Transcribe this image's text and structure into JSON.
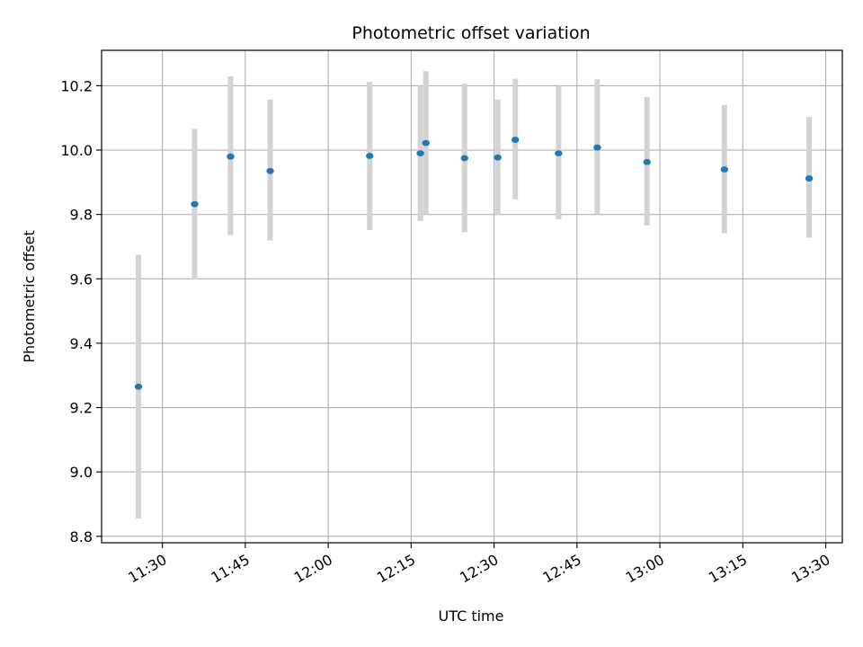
{
  "chart_data": {
    "type": "scatter",
    "title": "Photometric offset variation",
    "xlabel": "UTC time",
    "ylabel": "Photometric offset",
    "x_unit": "time (HH:MM UTC)",
    "xlim": [
      "11:19",
      "13:33"
    ],
    "ylim": [
      8.78,
      10.31
    ],
    "x_ticks": [
      "11:30",
      "11:45",
      "12:00",
      "12:15",
      "12:30",
      "12:45",
      "13:00",
      "13:15",
      "13:30"
    ],
    "y_ticks": [
      8.8,
      9.0,
      9.2,
      9.4,
      9.6,
      9.8,
      10.0,
      10.2
    ],
    "y_tick_labels": [
      "8.8",
      "9.0",
      "9.2",
      "9.4",
      "9.6",
      "9.8",
      "10.0",
      "10.2"
    ],
    "grid": true,
    "x_tick_rotation_deg": 30,
    "colors": {
      "points": "#1f77b4",
      "error_bars": "#d3d3d3",
      "grid": "#b0b0b0"
    },
    "points": [
      {
        "x": "11:25:40",
        "y": 9.265,
        "err_low": 8.855,
        "err_high": 9.675
      },
      {
        "x": "11:35:50",
        "y": 9.832,
        "err_low": 9.598,
        "err_high": 10.066
      },
      {
        "x": "11:42:20",
        "y": 9.98,
        "err_low": 9.736,
        "err_high": 10.229
      },
      {
        "x": "11:49:30",
        "y": 9.935,
        "err_low": 9.719,
        "err_high": 10.157
      },
      {
        "x": "12:07:30",
        "y": 9.982,
        "err_low": 9.752,
        "err_high": 10.212
      },
      {
        "x": "12:16:40",
        "y": 9.99,
        "err_low": 9.78,
        "err_high": 10.2
      },
      {
        "x": "12:17:40",
        "y": 10.022,
        "err_low": 9.8,
        "err_high": 10.245
      },
      {
        "x": "12:24:40",
        "y": 9.975,
        "err_low": 9.745,
        "err_high": 10.206
      },
      {
        "x": "12:30:40",
        "y": 9.977,
        "err_low": 9.798,
        "err_high": 10.157
      },
      {
        "x": "12:33:50",
        "y": 10.032,
        "err_low": 9.847,
        "err_high": 10.222
      },
      {
        "x": "12:41:40",
        "y": 9.99,
        "err_low": 9.785,
        "err_high": 10.2
      },
      {
        "x": "12:48:40",
        "y": 10.008,
        "err_low": 9.8,
        "err_high": 10.22
      },
      {
        "x": "12:57:40",
        "y": 9.963,
        "err_low": 9.766,
        "err_high": 10.165
      },
      {
        "x": "13:11:40",
        "y": 9.94,
        "err_low": 9.742,
        "err_high": 10.14
      },
      {
        "x": "13:27:00",
        "y": 9.912,
        "err_low": 9.728,
        "err_high": 10.103
      }
    ]
  }
}
